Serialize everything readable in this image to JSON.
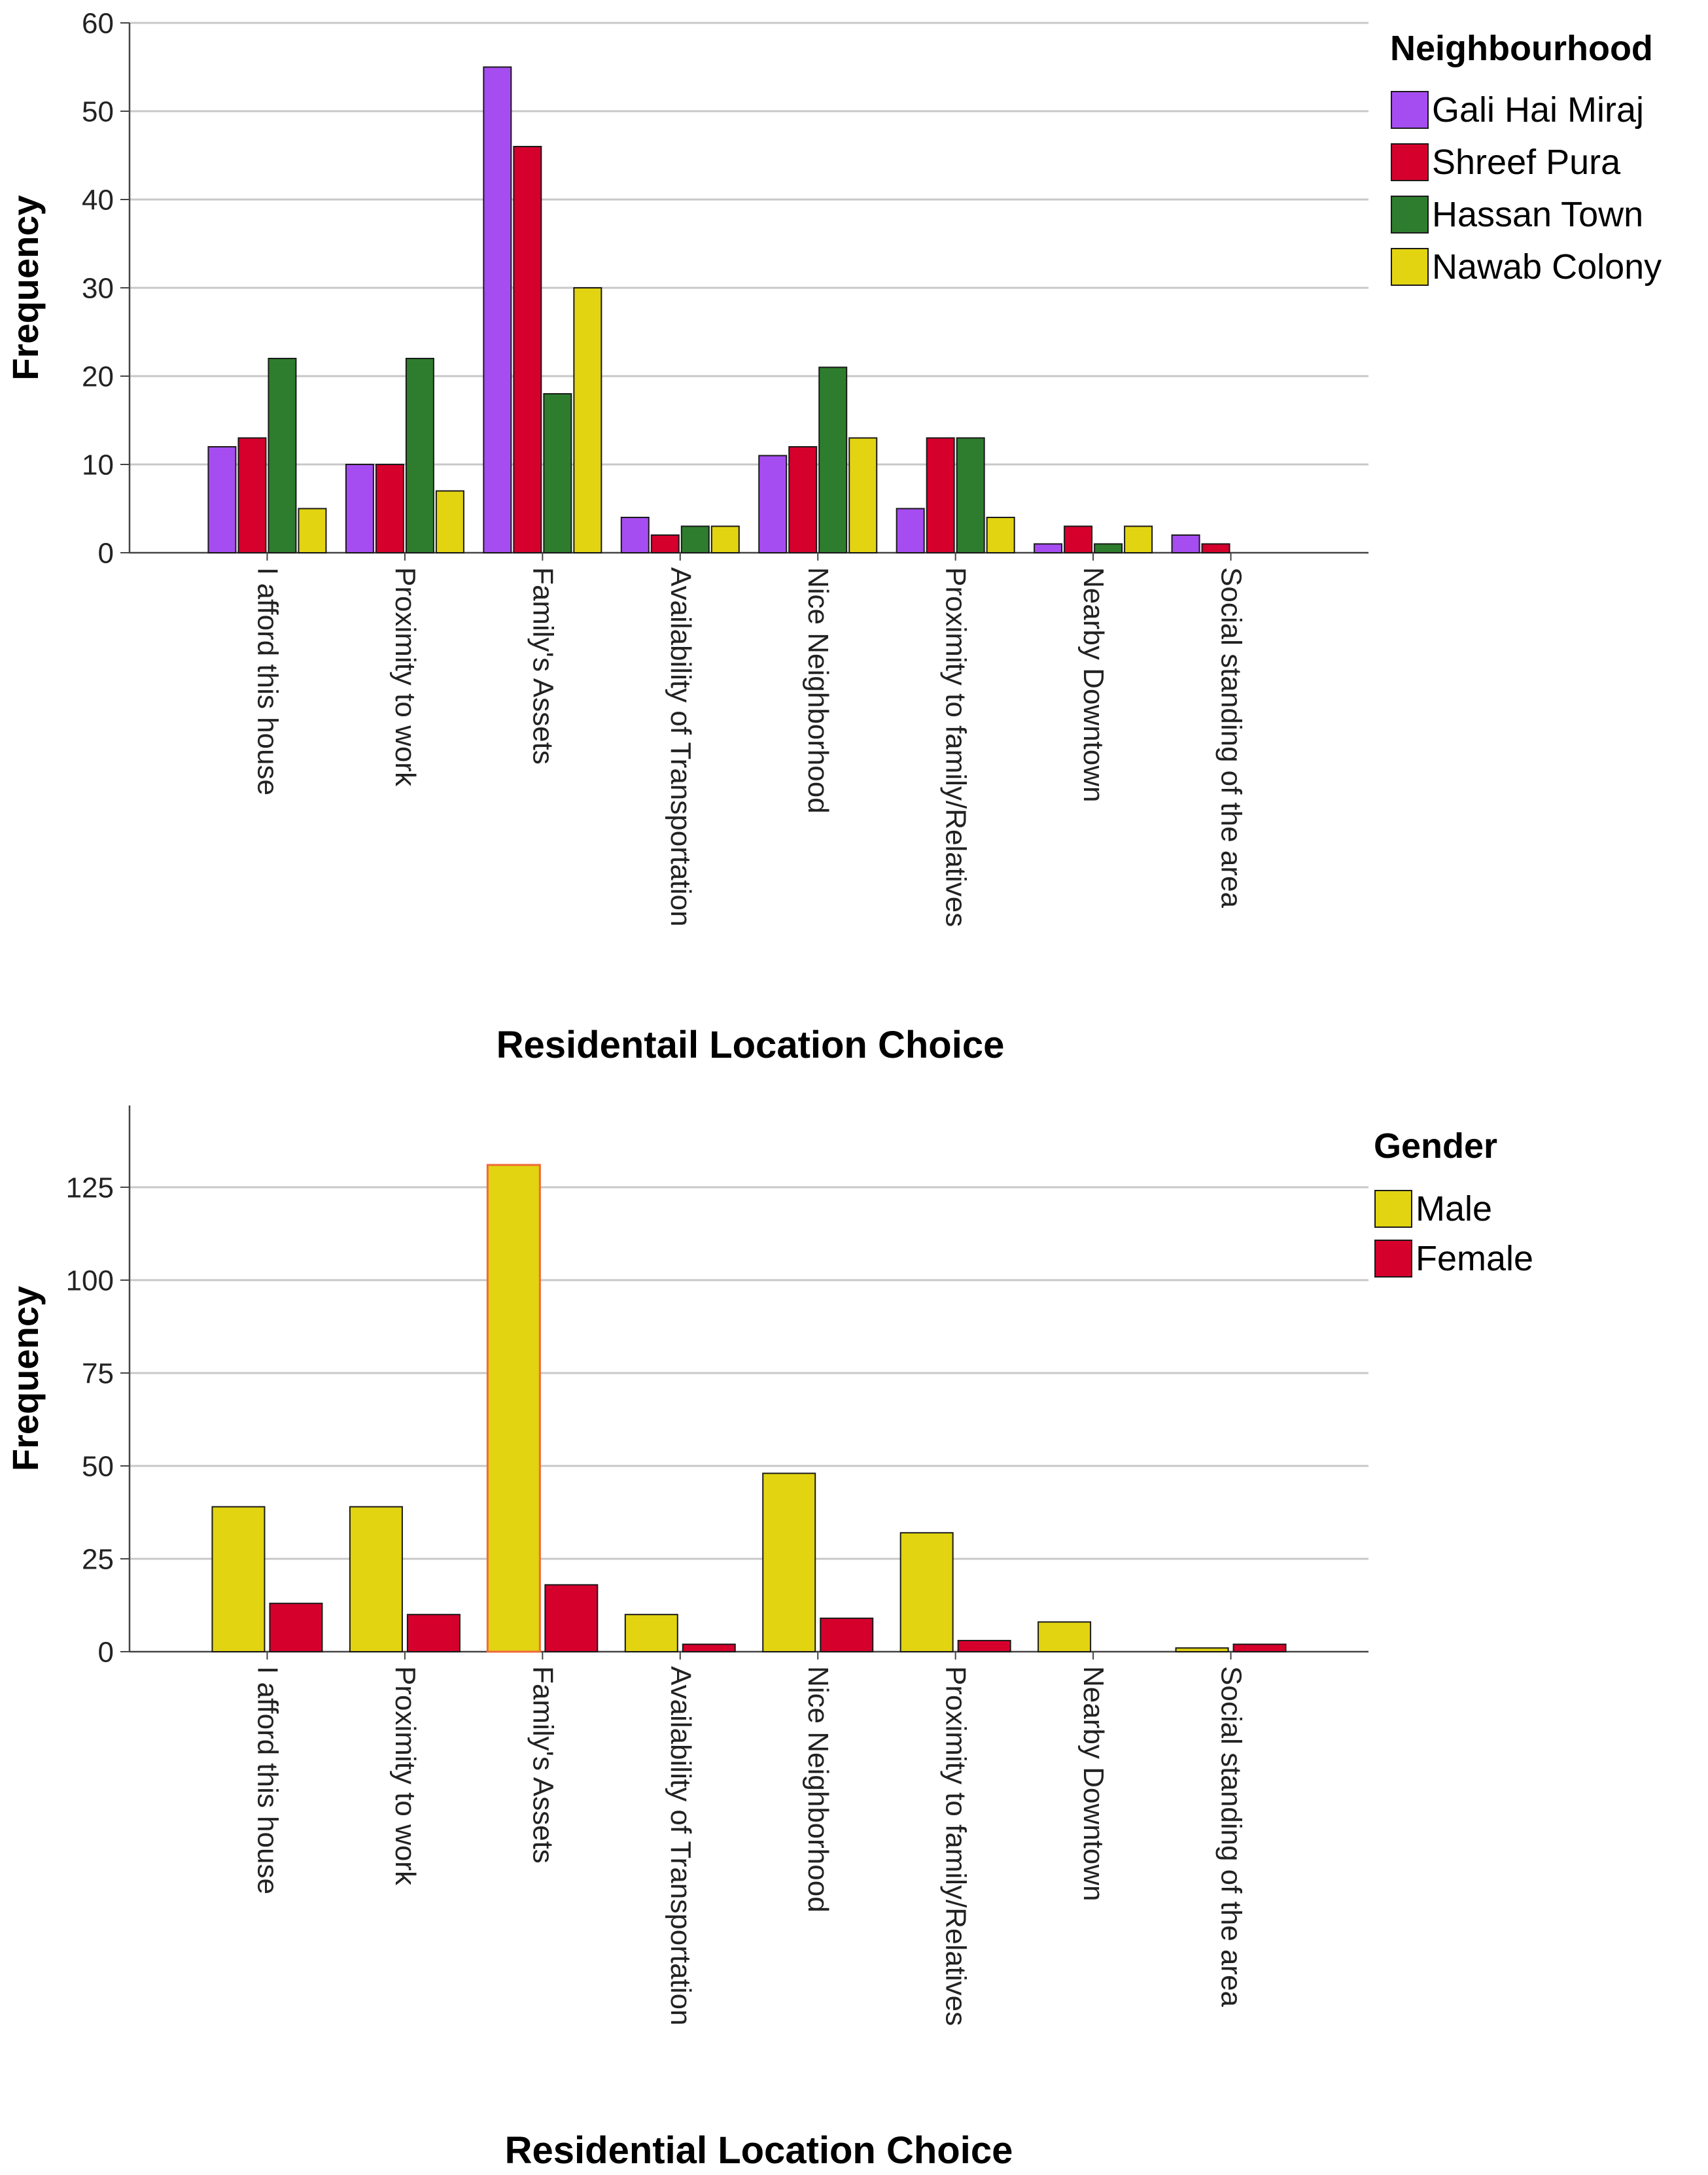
{
  "chart_data": [
    {
      "type": "bar",
      "title": "",
      "xlabel": "Residentail Location Choice",
      "ylabel": "Frequency",
      "ylim": [
        0,
        60
      ],
      "yticks": [
        0,
        10,
        20,
        30,
        40,
        50,
        60
      ],
      "grid": true,
      "legend": {
        "title": "Neighbourhood",
        "position": "top-right"
      },
      "categories": [
        "I afford this house",
        "Proximity to work",
        "Family's Assets",
        "Availability of Transportation",
        "Nice Neighborhood",
        "Proximity to family/Relatives",
        "Nearby Downtown",
        "Social standing of the area"
      ],
      "series": [
        {
          "name": "Gali Hai Miraj",
          "color": "#a64df2",
          "values": [
            12,
            10,
            55,
            4,
            11,
            5,
            1,
            2
          ]
        },
        {
          "name": "Shreef Pura",
          "color": "#d6002d",
          "values": [
            13,
            10,
            46,
            2,
            12,
            13,
            3,
            1
          ]
        },
        {
          "name": "Hassan Town",
          "color": "#2e7d2e",
          "values": [
            22,
            22,
            18,
            3,
            21,
            13,
            1,
            0
          ]
        },
        {
          "name": "Nawab Colony",
          "color": "#e2d411",
          "values": [
            5,
            7,
            30,
            3,
            13,
            4,
            3,
            0
          ]
        }
      ]
    },
    {
      "type": "bar",
      "title": "",
      "xlabel": "Residential Location Choice",
      "ylabel": "Frequency",
      "ylim": [
        0,
        147
      ],
      "yticks": [
        0,
        25,
        50,
        75,
        100,
        125
      ],
      "grid": true,
      "legend": {
        "title": "Gender",
        "position": "top-right"
      },
      "categories": [
        "I afford this house",
        "Proximity to work",
        "Family's Assets",
        "Availability of Transportation",
        "Nice Neighborhood",
        "Proximity to family/Relatives",
        "Nearby Downtown",
        "Social standing of the area"
      ],
      "series": [
        {
          "name": "Male",
          "color": "#e2d411",
          "values": [
            39,
            39,
            131,
            10,
            48,
            32,
            8,
            1
          ]
        },
        {
          "name": "Female",
          "color": "#d6002d",
          "values": [
            13,
            10,
            18,
            2,
            9,
            3,
            0,
            2
          ]
        }
      ]
    }
  ]
}
